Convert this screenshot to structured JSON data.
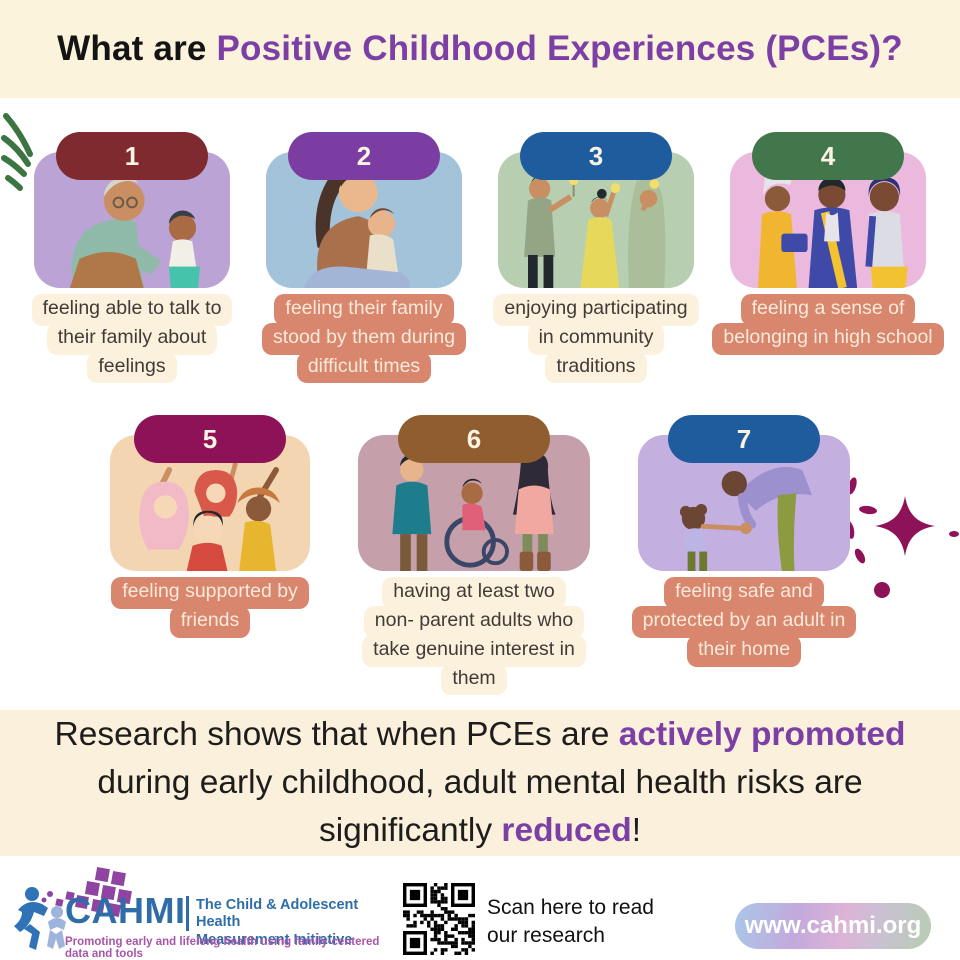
{
  "header": {
    "title_prefix": "What are ",
    "title_highlight": "Positive Childhood Experiences (PCEs)?"
  },
  "cards": [
    {
      "number": "1",
      "badge_color": "#7E2A2E",
      "body_color": "#BCA3D6",
      "caption_style": "cream",
      "illustration": "grandfather-talking-with-boy",
      "caption": "feeling able to talk to their family about feelings",
      "caption_lines": [
        "feeling able to talk to",
        "their family about",
        "feelings"
      ]
    },
    {
      "number": "2",
      "badge_color": "#7C3DA2",
      "body_color": "#A3C3DA",
      "caption_style": "salmon",
      "illustration": "mother-hugging-child",
      "caption": "feeling their family stood by them during difficult times",
      "caption_lines": [
        "feeling their family",
        "stood by them during",
        "difficult times"
      ]
    },
    {
      "number": "3",
      "badge_color": "#1E5C9E",
      "body_color": "#B7CEB0",
      "caption_style": "cream",
      "illustration": "family-holding-sparklers",
      "caption": "enjoying participating in community traditions",
      "caption_lines": [
        "enjoying participating",
        "in community",
        "traditions"
      ]
    },
    {
      "number": "4",
      "badge_color": "#41774A",
      "body_color": "#EBB9DE",
      "caption_style": "salmon",
      "illustration": "three-teens-at-school",
      "caption": "feeling a sense of belonging in high school",
      "caption_lines": [
        "feeling a sense of",
        "belonging in high school"
      ]
    },
    {
      "number": "5",
      "badge_color": "#8E1257",
      "body_color": "#F3D6B1",
      "caption_style": "salmon",
      "illustration": "group-of-friends-waving",
      "caption": "feeling supported by friends",
      "caption_lines": [
        "feeling supported by",
        "friends"
      ]
    },
    {
      "number": "6",
      "badge_color": "#8F5D2E",
      "body_color": "#C5A0AB",
      "caption_style": "cream",
      "illustration": "adults-with-child-in-wheelchair",
      "caption": "having at least two non- parent adults who take genuine interest in them",
      "caption_lines": [
        "having at least two",
        "non- parent adults who",
        "take genuine interest in",
        "them"
      ]
    },
    {
      "number": "7",
      "badge_color": "#1E5C9E",
      "body_color": "#C3AFE0",
      "caption_style": "salmon",
      "illustration": "adult-reaching-to-toddler",
      "caption": "feeling safe and protected by an adult in their home",
      "caption_lines": [
        "feeling safe and",
        "protected by an adult in",
        "their home"
      ]
    }
  ],
  "research": {
    "seg1": "Research shows that when PCEs are ",
    "seg2": "actively promoted",
    "seg3": " during early childhood, adult mental health risks are significantly ",
    "seg4": "reduced",
    "seg5": "!"
  },
  "footer": {
    "org_name": "CAHMI",
    "org_full_line1": "The Child & Adolescent Health",
    "org_full_line2": "Measurement Initiative",
    "tagline": "Promoting early and lifelong health using family-centered data and tools",
    "scan_line1": "Scan here to read",
    "scan_line2": "our research",
    "website": "www.cahmi.org"
  },
  "icons": {
    "deco_leaves": "green-leaf-strokes",
    "deco_sparkle": "magenta-sparkle-star",
    "qr": "qr-code",
    "logo_mark": "cahmi-figures-and-mosaic"
  },
  "colors": {
    "accent_purple": "#7C3FA5",
    "header_bg": "#FCF3DC",
    "research_bg": "#FBF0DB",
    "caption_salmon": "#D8866D",
    "caption_cream": "#FCF1DC",
    "caption_text_dark": "#403B38",
    "caption_text_light": "#F9E9D8",
    "cahmi_blue": "#2E6DA8",
    "cahmi_purple": "#A855A8"
  }
}
